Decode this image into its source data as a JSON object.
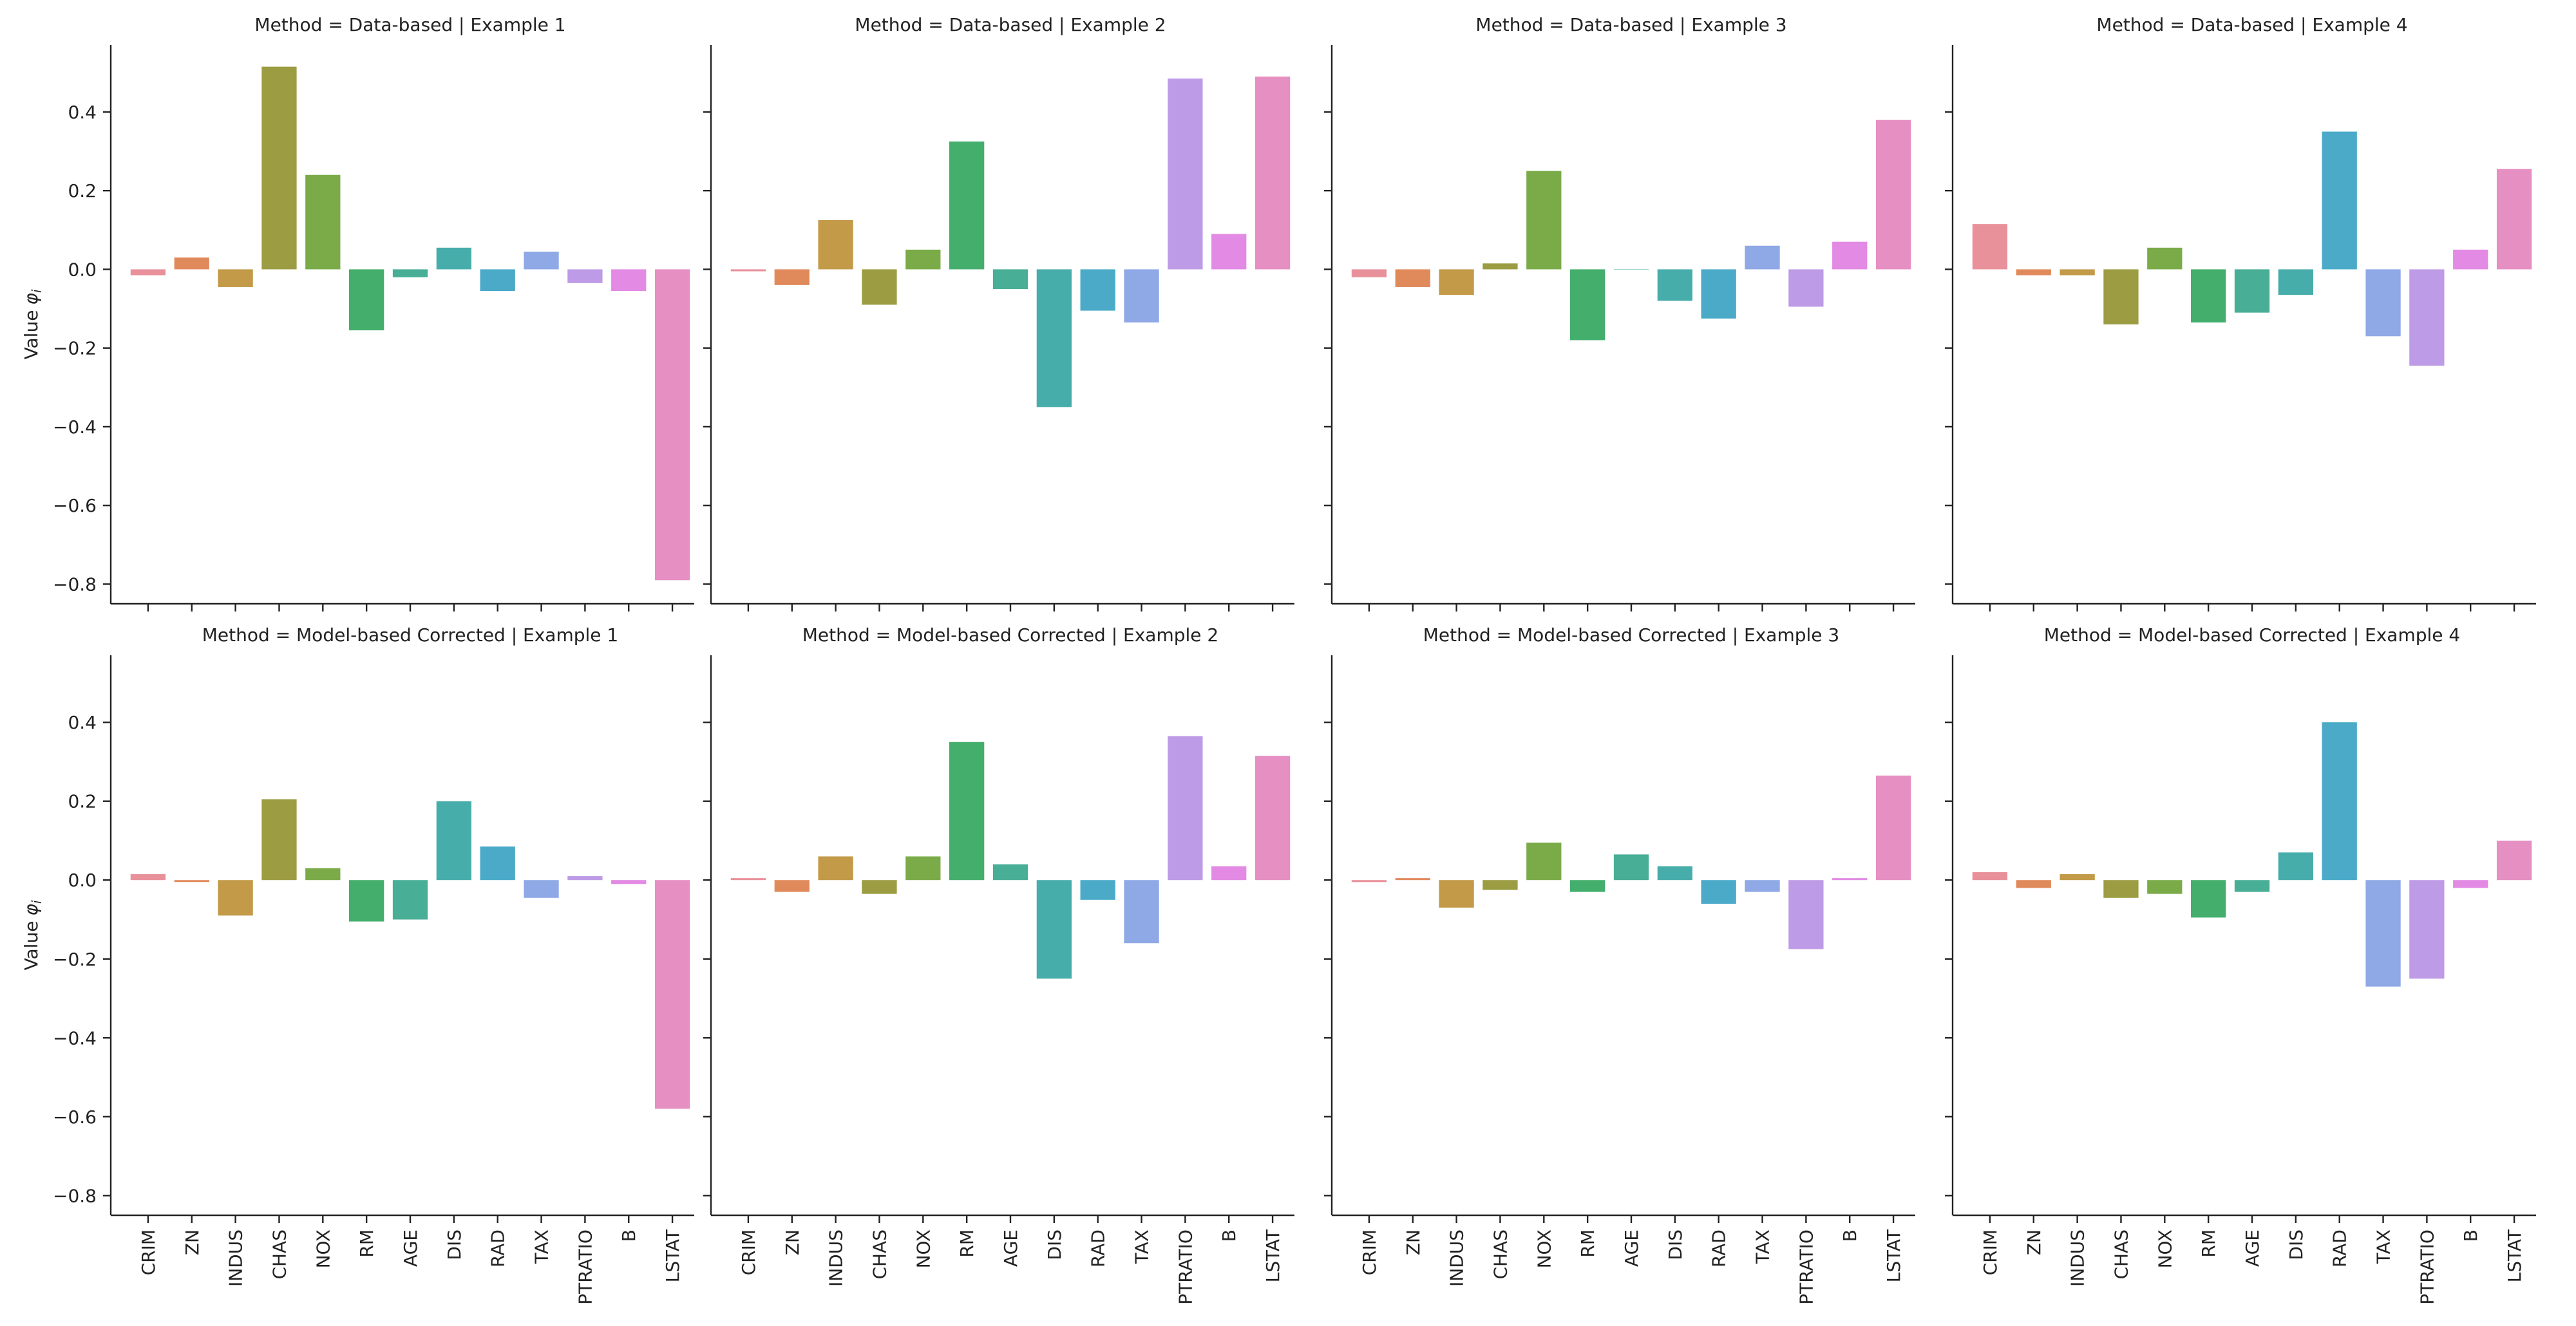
{
  "chart_data": {
    "type": "bar",
    "layout": "facet-grid",
    "row_variable": "Method",
    "col_variable": "Example",
    "ylabel": "Value",
    "ylabel_symbol": "φ",
    "ylabel_subscript": "i",
    "xlabel": "",
    "ylim": [
      -0.85,
      0.57
    ],
    "yticks": [
      0.4,
      0.2,
      0.0,
      -0.2,
      -0.4,
      -0.6,
      -0.8
    ],
    "ytick_labels": [
      "0.4",
      "0.2",
      "0.0",
      "−0.2",
      "−0.4",
      "−0.6",
      "−0.8"
    ],
    "grid": false,
    "categories": [
      "CRIM",
      "ZN",
      "INDUS",
      "CHAS",
      "NOX",
      "RM",
      "AGE",
      "DIS",
      "RAD",
      "TAX",
      "PTRATIO",
      "B",
      "LSTAT"
    ],
    "colors": [
      "#e8919b",
      "#e08a5c",
      "#c29a48",
      "#9c9c43",
      "#7aab48",
      "#44ae6d",
      "#48ae96",
      "#47adab",
      "#4aaac8",
      "#8fa8e6",
      "#bd9be6",
      "#e28ae4",
      "#e68fc2"
    ],
    "panels": [
      {
        "title": "Method = Data-based | Example 1",
        "values": [
          -0.015,
          0.03,
          -0.045,
          0.515,
          0.24,
          -0.155,
          -0.02,
          0.055,
          -0.055,
          0.045,
          -0.035,
          -0.055,
          -0.79
        ]
      },
      {
        "title": "Method = Data-based |  Example 2",
        "values": [
          -0.005,
          -0.04,
          0.125,
          -0.09,
          0.05,
          0.325,
          -0.05,
          -0.35,
          -0.105,
          -0.135,
          0.485,
          0.09,
          0.49
        ]
      },
      {
        "title": "Method = Data-based | Example 3",
        "values": [
          -0.02,
          -0.045,
          -0.065,
          0.015,
          0.25,
          -0.18,
          0.0,
          -0.08,
          -0.125,
          0.06,
          -0.095,
          0.07,
          0.38
        ]
      },
      {
        "title": "Method = Data-based | Example 4",
        "values": [
          0.115,
          -0.015,
          -0.015,
          -0.14,
          0.055,
          -0.135,
          -0.11,
          -0.065,
          0.35,
          -0.17,
          -0.245,
          0.05,
          0.255
        ]
      },
      {
        "title": "Method = Model-based Corrected | Example 1",
        "values": [
          0.015,
          -0.005,
          -0.09,
          0.205,
          0.03,
          -0.105,
          -0.1,
          0.2,
          0.085,
          -0.045,
          0.01,
          -0.01,
          -0.58
        ]
      },
      {
        "title": "Method = Model-based Corrected | Example 2",
        "values": [
          0.005,
          -0.03,
          0.06,
          -0.035,
          0.06,
          0.35,
          0.04,
          -0.25,
          -0.05,
          -0.16,
          0.365,
          0.035,
          0.315
        ]
      },
      {
        "title": "Method = Model-based Corrected | Example 3",
        "values": [
          -0.005,
          0.005,
          -0.07,
          -0.025,
          0.095,
          -0.03,
          0.065,
          0.035,
          -0.06,
          -0.03,
          -0.175,
          0.005,
          0.265
        ]
      },
      {
        "title": "Method = Model-based Corrected | Example 4",
        "values": [
          0.02,
          -0.02,
          0.015,
          -0.045,
          -0.035,
          -0.095,
          -0.03,
          0.07,
          0.4,
          -0.27,
          -0.25,
          -0.02,
          0.1
        ]
      }
    ]
  }
}
